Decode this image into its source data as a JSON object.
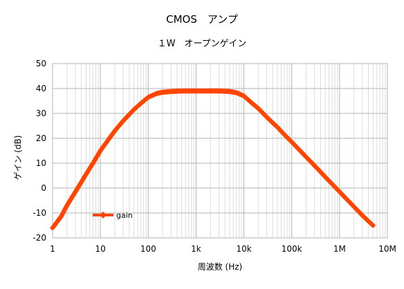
{
  "chart_data": {
    "type": "line",
    "title": "CMOS　アンプ",
    "subtitle": "１W　オープンゲイン",
    "xlabel": "周波数 (Hz)",
    "ylabel": "ゲイン (dB)",
    "x_scale": "log",
    "xlim": [
      1,
      10000000
    ],
    "ylim": [
      -20,
      50
    ],
    "x_ticks": [
      1,
      10,
      100,
      1000,
      10000,
      100000,
      1000000,
      10000000
    ],
    "x_tick_labels": [
      "1",
      "10",
      "100",
      "1k",
      "10k",
      "100k",
      "1M",
      "10M"
    ],
    "y_ticks": [
      -20,
      -10,
      0,
      10,
      20,
      30,
      40,
      50
    ],
    "y_tick_labels": [
      "-20",
      "-10",
      "0",
      "10",
      "20",
      "30",
      "40",
      "50"
    ],
    "grid": true,
    "legend_position": "bottom-left",
    "series": [
      {
        "name": "gain",
        "color": "#ff4500",
        "marker": "diamond",
        "x": [
          1,
          1.5,
          2,
          3,
          5,
          7,
          10,
          20,
          30,
          50,
          70,
          100,
          150,
          200,
          300,
          500,
          700,
          1000,
          2000,
          3000,
          5000,
          7000,
          10000,
          15000,
          20000,
          30000,
          50000,
          70000,
          100000,
          200000,
          300000,
          500000,
          1000000,
          2000000,
          3000000,
          5000000
        ],
        "y": [
          -16,
          -11.5,
          -7,
          -1.5,
          5.5,
          10,
          15,
          23,
          27,
          31.5,
          34,
          36.5,
          38,
          38.5,
          38.8,
          39,
          39,
          39,
          39,
          39,
          38.8,
          38.3,
          37,
          34,
          32,
          28.5,
          24.5,
          21.5,
          18.5,
          12.5,
          9,
          4.5,
          -1.5,
          -7.5,
          -11,
          -15
        ]
      }
    ]
  }
}
